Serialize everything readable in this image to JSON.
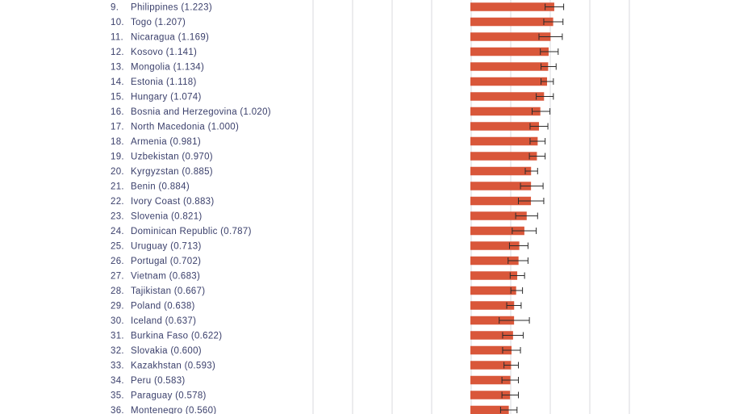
{
  "chart_data": {
    "type": "bar",
    "orientation": "horizontal",
    "title": "",
    "xlabel": "",
    "ylabel": "",
    "error_bars": true,
    "bar_color": "#d9573a",
    "label_color": "#3a3f6b",
    "grid": true,
    "rows": [
      {
        "rank": "9.",
        "name": "Philippines",
        "value": 1.223,
        "label": "Philippines (1.223)",
        "err_low": 1.09,
        "err_high": 1.36
      },
      {
        "rank": "10.",
        "name": "Togo",
        "value": 1.207,
        "label": "Togo (1.207)",
        "err_low": 1.07,
        "err_high": 1.35
      },
      {
        "rank": "11.",
        "name": "Nicaragua",
        "value": 1.169,
        "label": "Nicaragua (1.169)",
        "err_low": 1.0,
        "err_high": 1.34
      },
      {
        "rank": "12.",
        "name": "Kosovo",
        "value": 1.141,
        "label": "Kosovo (1.141)",
        "err_low": 1.02,
        "err_high": 1.28
      },
      {
        "rank": "13.",
        "name": "Mongolia",
        "value": 1.134,
        "label": "Mongolia (1.134)",
        "err_low": 1.03,
        "err_high": 1.25
      },
      {
        "rank": "14.",
        "name": "Estonia",
        "value": 1.118,
        "label": "Estonia (1.118)",
        "err_low": 1.03,
        "err_high": 1.21
      },
      {
        "rank": "15.",
        "name": "Hungary",
        "value": 1.074,
        "label": "Hungary (1.074)",
        "err_low": 0.96,
        "err_high": 1.21
      },
      {
        "rank": "16.",
        "name": "Bosnia and Herzegovina",
        "value": 1.02,
        "label": "Bosnia and Herzegovina (1.020)",
        "err_low": 0.9,
        "err_high": 1.16
      },
      {
        "rank": "17.",
        "name": "North Macedonia",
        "value": 1.0,
        "label": "North Macedonia (1.000)",
        "err_low": 0.87,
        "err_high": 1.13
      },
      {
        "rank": "18.",
        "name": "Armenia",
        "value": 0.981,
        "label": "Armenia (0.981)",
        "err_low": 0.87,
        "err_high": 1.09
      },
      {
        "rank": "19.",
        "name": "Uzbekistan",
        "value": 0.97,
        "label": "Uzbekistan (0.970)",
        "err_low": 0.86,
        "err_high": 1.09
      },
      {
        "rank": "20.",
        "name": "Kyrgyzstan",
        "value": 0.885,
        "label": "Kyrgyzstan (0.885)",
        "err_low": 0.8,
        "err_high": 0.98
      },
      {
        "rank": "21.",
        "name": "Benin",
        "value": 0.884,
        "label": "Benin (0.884)",
        "err_low": 0.73,
        "err_high": 1.06
      },
      {
        "rank": "22.",
        "name": "Ivory Coast",
        "value": 0.883,
        "label": "Ivory Coast (0.883)",
        "err_low": 0.7,
        "err_high": 1.07
      },
      {
        "rank": "23.",
        "name": "Slovenia",
        "value": 0.821,
        "label": "Slovenia (0.821)",
        "err_low": 0.66,
        "err_high": 0.98
      },
      {
        "rank": "24.",
        "name": "Dominican Republic",
        "value": 0.787,
        "label": "Dominican Republic (0.787)",
        "err_low": 0.61,
        "err_high": 0.96
      },
      {
        "rank": "25.",
        "name": "Uruguay",
        "value": 0.713,
        "label": "Uruguay (0.713)",
        "err_low": 0.57,
        "err_high": 0.84
      },
      {
        "rank": "26.",
        "name": "Portugal",
        "value": 0.702,
        "label": "Portugal (0.702)",
        "err_low": 0.55,
        "err_high": 0.84
      },
      {
        "rank": "27.",
        "name": "Vietnam",
        "value": 0.683,
        "label": "Vietnam (0.683)",
        "err_low": 0.58,
        "err_high": 0.79
      },
      {
        "rank": "28.",
        "name": "Tajikistan",
        "value": 0.667,
        "label": "Tajikistan (0.667)",
        "err_low": 0.59,
        "err_high": 0.76
      },
      {
        "rank": "29.",
        "name": "Poland",
        "value": 0.638,
        "label": "Poland (0.638)",
        "err_low": 0.53,
        "err_high": 0.74
      },
      {
        "rank": "30.",
        "name": "Iceland",
        "value": 0.637,
        "label": "Iceland (0.637)",
        "err_low": 0.42,
        "err_high": 0.86
      },
      {
        "rank": "31.",
        "name": "Burkina Faso",
        "value": 0.622,
        "label": "Burkina Faso (0.622)",
        "err_low": 0.47,
        "err_high": 0.77
      },
      {
        "rank": "32.",
        "name": "Slovakia",
        "value": 0.6,
        "label": "Slovakia (0.600)",
        "err_low": 0.47,
        "err_high": 0.73
      },
      {
        "rank": "33.",
        "name": "Kazakhstan",
        "value": 0.593,
        "label": "Kazakhstan (0.593)",
        "err_low": 0.49,
        "err_high": 0.7
      },
      {
        "rank": "34.",
        "name": "Peru",
        "value": 0.583,
        "label": "Peru (0.583)",
        "err_low": 0.46,
        "err_high": 0.7
      },
      {
        "rank": "35.",
        "name": "Paraguay",
        "value": 0.578,
        "label": "Paraguay (0.578)",
        "err_low": 0.46,
        "err_high": 0.7
      },
      {
        "rank": "36.",
        "name": "Montenegro",
        "value": 0.56,
        "label": "Montenegro (0.560)",
        "err_low": 0.44,
        "err_high": 0.68
      }
    ]
  }
}
